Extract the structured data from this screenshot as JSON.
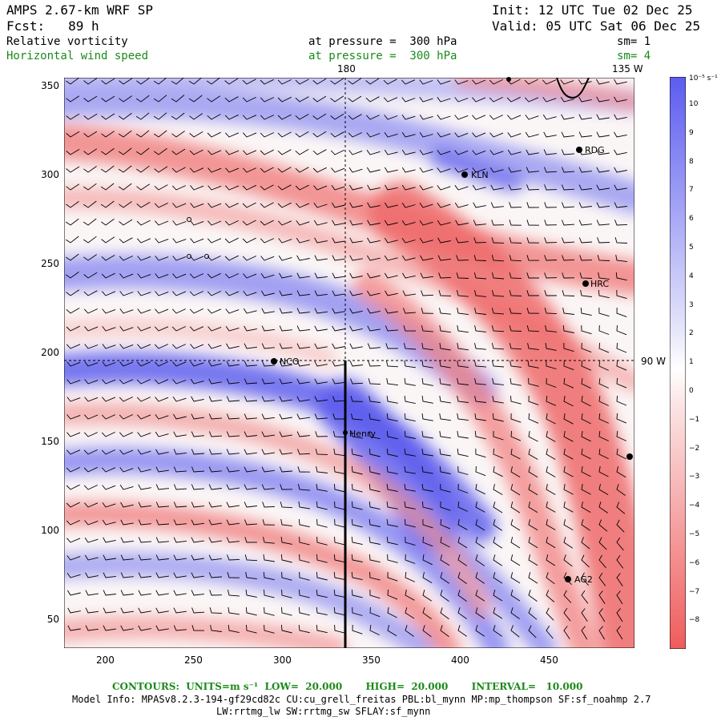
{
  "header": {
    "model": "AMPS 2.67-km WRF SP",
    "init": "Init: 12 UTC Tue 02 Dec 25",
    "fcst": "Fcst:   89 h",
    "valid": "Valid: 05 UTC Sat 06 Dec 25",
    "field1": "Relative vorticity",
    "field1_level": "at pressure =  300 hPa",
    "field1_sm": "sm= 1",
    "field2": "Horizontal wind speed",
    "field2_level": "at pressure =  300 hPa",
    "field2_sm": "sm= 4"
  },
  "map": {
    "x_ticks": [
      "200",
      "250",
      "300",
      "350",
      "400",
      "450"
    ],
    "y_ticks": [
      "350",
      "300",
      "250",
      "200",
      "150",
      "100",
      "50"
    ],
    "meridian_labels": [
      "180",
      "135 W",
      "90 W"
    ],
    "stations": [
      "RDG",
      "KLN",
      "HRC",
      "NCO",
      "Henry",
      "AG2"
    ],
    "colors": {
      "positive": "#6a6af2",
      "negative": "#f27a7a",
      "neutral": "#ffffff"
    }
  },
  "colorbar": {
    "unit_label": "10⁻⁵ s⁻¹",
    "labels": [
      "10",
      "9",
      "8",
      "7",
      "6",
      "5",
      "4",
      "3",
      "2",
      "1",
      "0",
      "−1",
      "−2",
      "−3",
      "−4",
      "−5",
      "−6",
      "−7",
      "−8"
    ]
  },
  "footer": {
    "contours_line": "CONTOURS:  UNITS=m s⁻¹  LOW=  20.000       HIGH=  20.000       INTERVAL=   10.000",
    "model_info": "Model Info: MPASv8.2.3-194-gf29cd82c CU:cu_grell_freitas PBL:bl_mynn MP:mp_thompson SF:sf_noahmp 2.7",
    "model_info2": "LW:rrtmg_lw SW:rrtmg_sw SFLAY:sf_mynn"
  }
}
